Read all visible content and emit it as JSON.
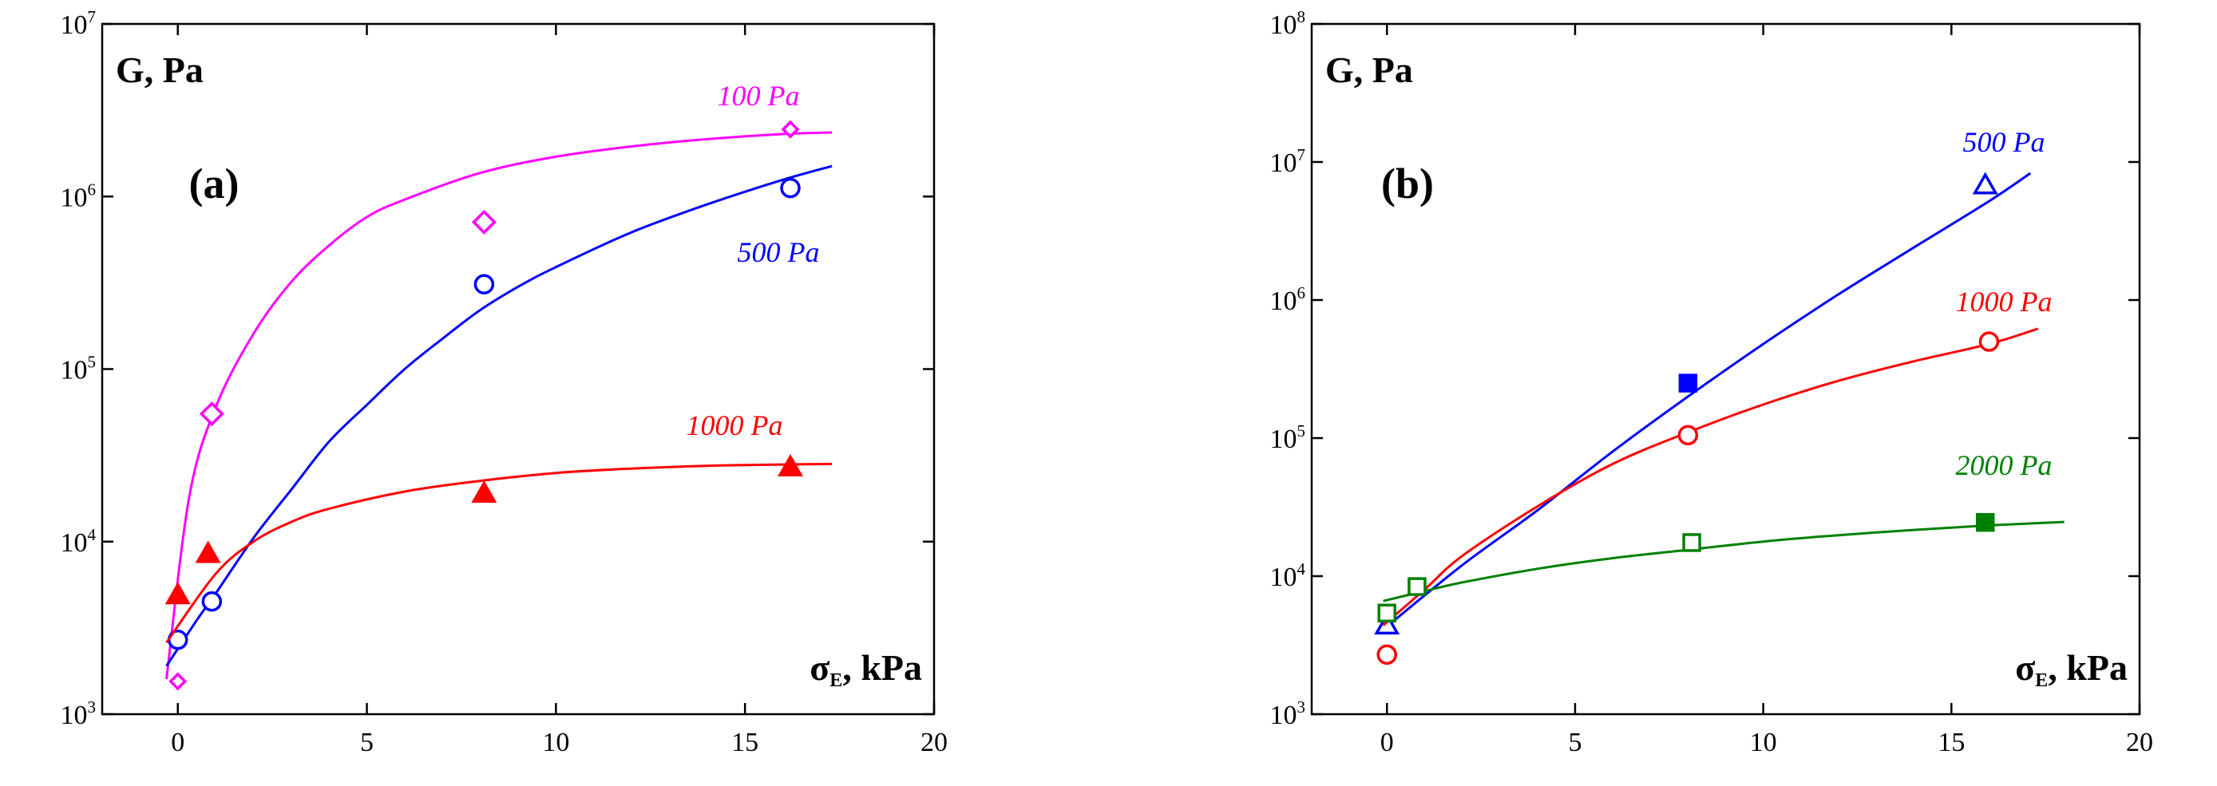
{
  "chart_data": [
    {
      "type": "scatter",
      "panel_label": "(a)",
      "ylabel": "G, Pa",
      "xlabel": "σ",
      "xlabel_subscript": "E",
      "xlabel_unit": ", kPa",
      "xlim": [
        -2,
        20
      ],
      "ylim_log10": [
        3,
        7
      ],
      "y_scale": "log",
      "x_ticks": [
        0,
        5,
        10,
        15,
        20
      ],
      "y_tick_exponents": [
        3,
        4,
        5,
        6,
        7
      ],
      "y_tick_base": "10",
      "series": [
        {
          "name": "100 Pa",
          "color": "#ff00ff",
          "marker": "diamond-open",
          "points": [
            {
              "x": 0,
              "y": 1550,
              "size": "small"
            },
            {
              "x": 0.9,
              "y": 55000,
              "size": "large"
            },
            {
              "x": 8.1,
              "y": 710000,
              "size": "large"
            },
            {
              "x": 16.2,
              "y": 2450000,
              "size": "small"
            }
          ],
          "fit_curve": {
            "x": [
              -0.3,
              0.3,
              1,
              2,
              3,
              4,
              5,
              6,
              8,
              10,
              12,
              14,
              16,
              17.3
            ],
            "y": [
              1600,
              18000,
              60000,
              160000,
              320000,
              520000,
              760000,
              960000,
              1370000,
              1700000,
              1950000,
              2150000,
              2300000,
              2350000
            ]
          }
        },
        {
          "name": "500 Pa",
          "color": "#0000ff",
          "marker": "circle-open",
          "points": [
            {
              "x": 0,
              "y": 2700
            },
            {
              "x": 0.9,
              "y": 4500
            },
            {
              "x": 8.1,
              "y": 310000
            },
            {
              "x": 16.2,
              "y": 1120000
            }
          ],
          "fit_curve": {
            "x": [
              -0.3,
              0.5,
              1,
              2,
              3,
              4,
              5,
              6,
              7,
              8,
              9,
              10,
              12,
              14,
              16,
              17.3
            ],
            "y": [
              1900,
              3500,
              5000,
              10500,
              20000,
              38000,
              62000,
              100000,
              150000,
              220000,
              300000,
              390000,
              620000,
              900000,
              1250000,
              1500000
            ]
          }
        },
        {
          "name": "1000 Pa",
          "color": "#ff0000",
          "marker": "triangle-filled",
          "points": [
            {
              "x": 0,
              "y": 4900
            },
            {
              "x": 0.8,
              "y": 8500
            },
            {
              "x": 8.1,
              "y": 19000
            },
            {
              "x": 16.2,
              "y": 27000
            }
          ],
          "fit_curve": {
            "x": [
              -0.3,
              1,
              2,
              3,
              4,
              6,
              8,
              10,
              12,
              14,
              16,
              17.3
            ],
            "y": [
              2600,
              6500,
              10000,
              13000,
              15500,
              19500,
              22500,
              25000,
              26500,
              27500,
              28000,
              28200
            ]
          }
        }
      ]
    },
    {
      "type": "scatter",
      "panel_label": "(b)",
      "ylabel": "G, Pa",
      "xlabel": "σ",
      "xlabel_subscript": "E",
      "xlabel_unit": ", kPa",
      "xlim": [
        -2,
        20
      ],
      "ylim_log10": [
        3,
        8
      ],
      "y_scale": "log",
      "x_ticks": [
        0,
        5,
        10,
        15,
        20
      ],
      "y_tick_exponents": [
        3,
        4,
        5,
        6,
        7,
        8
      ],
      "y_tick_base": "10",
      "series": [
        {
          "name": "500 Pa",
          "color": "#0000ff",
          "marker": "triangle-open",
          "points": [
            {
              "x": 0,
              "y": 4400,
              "marker": "triangle-open"
            },
            {
              "x": 8,
              "y": 250000,
              "marker": "square-filled"
            },
            {
              "x": 15.9,
              "y": 6800000,
              "marker": "triangle-open"
            }
          ],
          "fit_curve": {
            "x": [
              -0.1,
              2,
              4,
              6,
              8,
              10,
              12,
              14,
              16,
              17.1
            ],
            "y": [
              4100,
              12000,
              30000,
              80000,
              200000,
              480000,
              1100000,
              2400000,
              5200000,
              8300000
            ]
          }
        },
        {
          "name": "1000 Pa",
          "color": "#ff0000",
          "marker": "circle-open",
          "points": [
            {
              "x": 0,
              "y": 2700
            },
            {
              "x": 8,
              "y": 105000
            },
            {
              "x": 16,
              "y": 500000
            }
          ],
          "fit_curve": {
            "x": [
              -0.1,
              1,
              2,
              4,
              6,
              8,
              10,
              12,
              14,
              16,
              17.3
            ],
            "y": [
              4400,
              8000,
              14000,
              32000,
              65000,
              110000,
              175000,
              260000,
              360000,
              480000,
              620000
            ]
          }
        },
        {
          "name": "2000 Pa",
          "color": "#008000",
          "marker": "square-open",
          "points": [
            {
              "x": 0,
              "y": 5400,
              "marker": "square-open"
            },
            {
              "x": 0.8,
              "y": 8400,
              "marker": "square-open"
            },
            {
              "x": 8.1,
              "y": 17500,
              "marker": "square-open"
            },
            {
              "x": 15.9,
              "y": 24500,
              "marker": "square-filled"
            }
          ],
          "fit_curve": {
            "x": [
              -0.1,
              1,
              2,
              4,
              6,
              8,
              10,
              12,
              14,
              16,
              18
            ],
            "y": [
              6600,
              7800,
              9000,
              11300,
              13500,
              15500,
              17800,
              19800,
              21600,
              23300,
              24700
            ]
          }
        }
      ]
    }
  ]
}
